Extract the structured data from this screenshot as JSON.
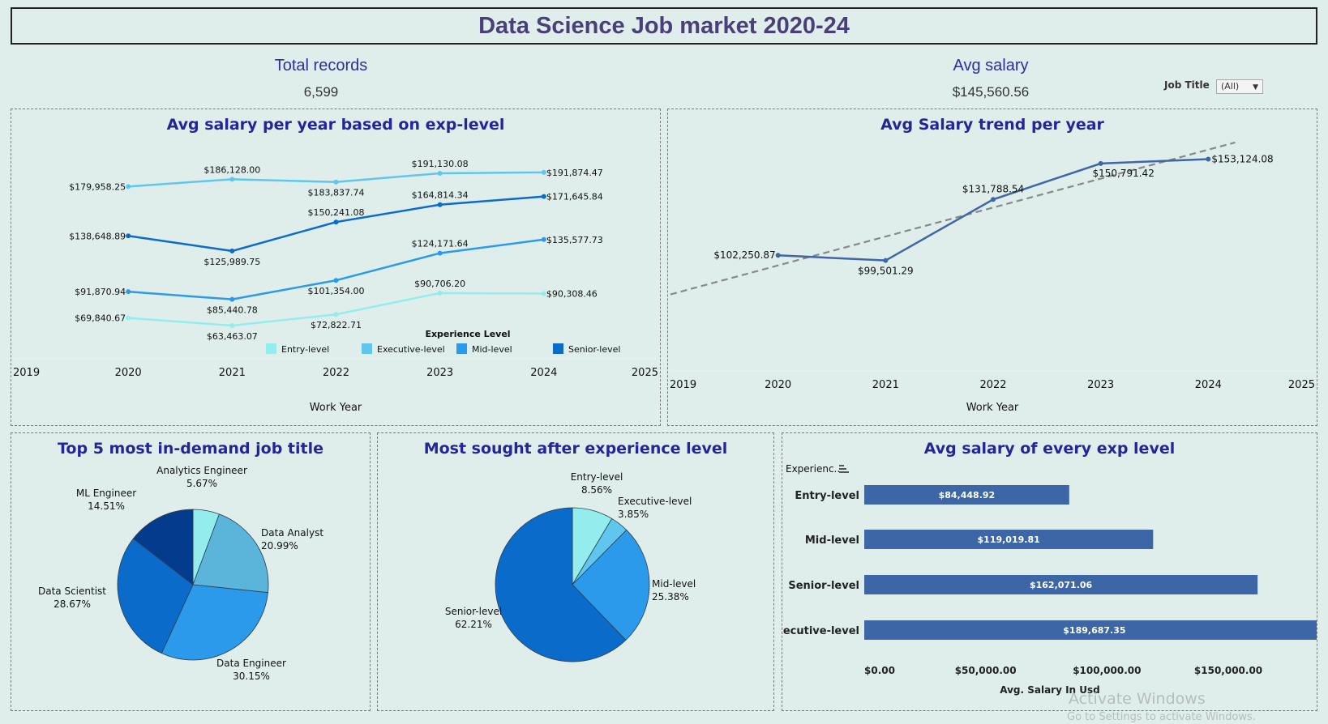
{
  "title": "Data Science Job market 2020-24",
  "kpis": {
    "total_records": {
      "label": "Total records",
      "value": "6,599"
    },
    "avg_salary": {
      "label": "Avg salary",
      "value": "$145,560.56"
    }
  },
  "filter": {
    "label": "Job Title",
    "value": "(All)"
  },
  "watermark": {
    "line1": "Activate Windows",
    "line2": "Go to Settings to activate Windows."
  },
  "colors": {
    "entry": "#95ecec",
    "executive": "#5fc7ed",
    "mid": "#2b9aeb",
    "senior": "#0b6bcb",
    "trend": "#3f67a8",
    "bar": "#3d66a6"
  },
  "chart_data": [
    {
      "type": "line",
      "title": "Avg salary per year based on exp-level",
      "xlabel": "Work Year",
      "x": [
        2020,
        2021,
        2022,
        2023,
        2024
      ],
      "xlim": [
        2019,
        2025
      ],
      "xticks": [
        "2019",
        "2020",
        "2021",
        "2022",
        "2023",
        "2024",
        "2025"
      ],
      "legend_title": "Experience Level",
      "legend": [
        "Entry-level",
        "Executive-level",
        "Mid-level",
        "Senior-level"
      ],
      "series": [
        {
          "name": "Executive-level",
          "values": [
            179958.25,
            186128.0,
            183837.74,
            191130.08,
            191874.47
          ],
          "labels": [
            "$179,958.25",
            "$186,128.00",
            "$183,837.74",
            "$191,130.08",
            "$191,874.47"
          ]
        },
        {
          "name": "Senior-level",
          "values": [
            138648.89,
            125989.75,
            150241.08,
            164814.34,
            171645.84
          ],
          "labels": [
            "$138,648.89",
            "$125,989.75",
            "$150,241.08",
            "$164,814.34",
            "$171,645.84"
          ]
        },
        {
          "name": "Mid-level",
          "values": [
            91870.94,
            85440.78,
            101354.0,
            124171.64,
            135577.73
          ],
          "labels": [
            "$91,870.94",
            "$85,440.78",
            "$101,354.00",
            "$124,171.64",
            "$135,577.73"
          ]
        },
        {
          "name": "Entry-level",
          "values": [
            69840.67,
            63463.07,
            72822.71,
            90706.2,
            90308.46
          ],
          "labels": [
            "$69,840.67",
            "$63,463.07",
            "$72,822.71",
            "$90,706.20",
            "$90,308.46"
          ]
        }
      ]
    },
    {
      "type": "line",
      "title": "Avg Salary trend per year",
      "xlabel": "Work Year",
      "x": [
        2020,
        2021,
        2022,
        2023,
        2024
      ],
      "xlim": [
        2019,
        2025
      ],
      "xticks": [
        "2019",
        "2020",
        "2021",
        "2022",
        "2023",
        "2024",
        "2025"
      ],
      "trend_line": true,
      "series": [
        {
          "values": [
            102250.87,
            99501.29,
            131788.54,
            150791.42,
            153124.08
          ],
          "labels": [
            "$102,250.87",
            "$99,501.29",
            "$131,788.54",
            "$150,791.42",
            "$153,124.08"
          ]
        }
      ]
    },
    {
      "type": "pie",
      "title": "Top 5 most in-demand job title",
      "slices": [
        {
          "name": "Analytics Engineer",
          "value": 5.67,
          "label": "5.67%",
          "color": "#94ecec"
        },
        {
          "name": "Data Analyst",
          "value": 20.99,
          "label": "20.99%",
          "color": "#5bb5da"
        },
        {
          "name": "Data Engineer",
          "value": 30.15,
          "label": "30.15%",
          "color": "#2b9aeb"
        },
        {
          "name": "Data Scientist",
          "value": 28.67,
          "label": "28.67%",
          "color": "#0b6bcb"
        },
        {
          "name": "ML Engineer",
          "value": 14.51,
          "label": "14.51%",
          "color": "#053b8c"
        }
      ]
    },
    {
      "type": "pie",
      "title": "Most sought after experience level",
      "slices": [
        {
          "name": "Entry-level",
          "value": 8.56,
          "label": "8.56%",
          "color": "#95ecec"
        },
        {
          "name": "Executive-level",
          "value": 3.85,
          "label": "3.85%",
          "color": "#5fc7ed"
        },
        {
          "name": "Mid-level",
          "value": 25.38,
          "label": "25.38%",
          "color": "#2b9aeb"
        },
        {
          "name": "Senior-level",
          "value": 62.21,
          "label": "62.21%",
          "color": "#0b6bcb"
        }
      ]
    },
    {
      "type": "bar",
      "orientation": "horizontal",
      "title": "Avg salary of every exp level",
      "ylabel": "Experienc..",
      "xlabel": "Avg. Salary In Usd",
      "categories": [
        "Entry-level",
        "Mid-level",
        "Senior-level",
        "Executive-level"
      ],
      "values": [
        84448.92,
        119019.81,
        162071.06,
        189687.35
      ],
      "labels": [
        "$84,448.92",
        "$119,019.81",
        "$162,071.06",
        "$189,687.35"
      ],
      "xticks": [
        "$0.00",
        "$50,000.00",
        "$100,000.00",
        "$150,000.00"
      ],
      "xlim": [
        0,
        190000
      ]
    }
  ]
}
